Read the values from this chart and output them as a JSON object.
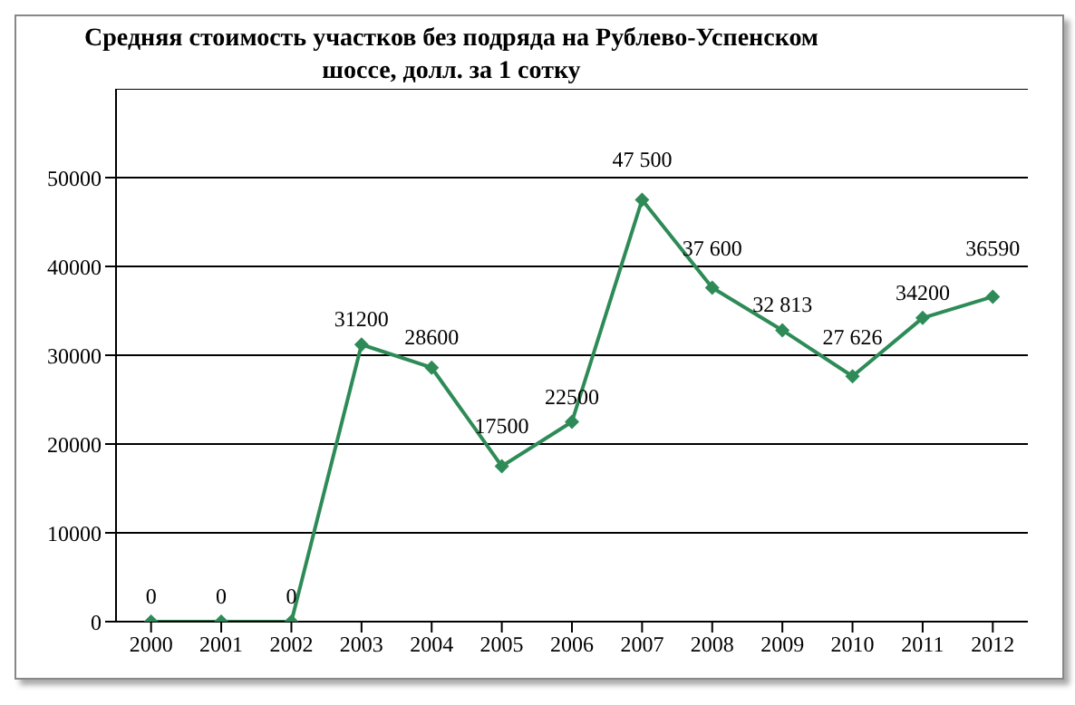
{
  "chart_data": {
    "type": "line",
    "title": "Средняя стоимость участков без подряда на Рублево-Успенском шоссе, долл. за 1 сотку",
    "categories": [
      "2000",
      "2001",
      "2002",
      "2003",
      "2004",
      "2005",
      "2006",
      "2007",
      "2008",
      "2009",
      "2010",
      "2011",
      "2012"
    ],
    "series": [
      {
        "color": "#2e8b57",
        "values": [
          0,
          0,
          0,
          31200,
          28600,
          17500,
          22500,
          47500,
          37600,
          32813,
          27626,
          34200,
          36590
        ],
        "value_labels": [
          "0",
          "0",
          "0",
          "31200",
          "28600",
          "17500",
          "22500",
          "47 500",
          "37 600",
          "32 813",
          "27 626",
          "34200",
          "36590"
        ]
      }
    ],
    "ylim": [
      0,
      60000
    ],
    "yticks": [
      0,
      10000,
      20000,
      30000,
      40000,
      50000
    ],
    "grid": "y",
    "legend": false,
    "marker": "diamond",
    "line_style": "solid"
  }
}
